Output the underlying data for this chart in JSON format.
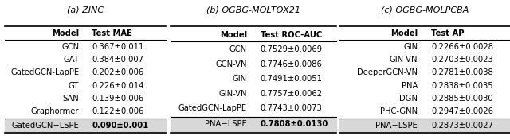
{
  "table_a": {
    "title": "(a) ZINC",
    "col1": "Model",
    "col2": "Test MAE",
    "rows": [
      [
        "GCN",
        "0.367±0.011"
      ],
      [
        "GAT",
        "0.384±0.007"
      ],
      [
        "GatedGCN-LapPE",
        "0.202±0.006"
      ],
      [
        "GT",
        "0.226±0.014"
      ],
      [
        "SAN",
        "0.139±0.006"
      ],
      [
        "Graphormer",
        "0.122±0.006"
      ]
    ],
    "highlight_row": [
      "GatedGCN−LSPE",
      "0.090±0.001"
    ],
    "highlight_bold": true
  },
  "table_b": {
    "title": "(b) OGBG-MOLTOX21",
    "col1": "Model",
    "col2": "Test ROC-AUC",
    "rows": [
      [
        "GCN",
        "0.7529±0.0069"
      ],
      [
        "GCN-VN",
        "0.7746±0.0086"
      ],
      [
        "GIN",
        "0.7491±0.0051"
      ],
      [
        "GIN-VN",
        "0.7757±0.0062"
      ],
      [
        "GatedGCN-LapPE",
        "0.7743±0.0073"
      ]
    ],
    "highlight_row": [
      "PNA−LSPE",
      "0.7808±0.0130"
    ],
    "highlight_bold": true
  },
  "table_c": {
    "title": "(c) OGBG-MOLPCBA",
    "col1": "Model",
    "col2": "Test AP",
    "rows": [
      [
        "GIN",
        "0.2266±0.0028"
      ],
      [
        "GIN-VN",
        "0.2703±0.0023"
      ],
      [
        "DeeperGCN-VN",
        "0.2781±0.0038"
      ],
      [
        "PNA",
        "0.2838±0.0035"
      ],
      [
        "DGN",
        "0.2885±0.0030"
      ],
      [
        "PHC-GNN",
        "0.2947±0.0026"
      ]
    ],
    "highlight_row": [
      "PNA−LSPE",
      "0.2873±0.0027"
    ],
    "highlight_bold": false
  },
  "fig_fontsize": 7.2,
  "title_fontsize": 8.0,
  "highlight_bg": "#d8d8d8"
}
